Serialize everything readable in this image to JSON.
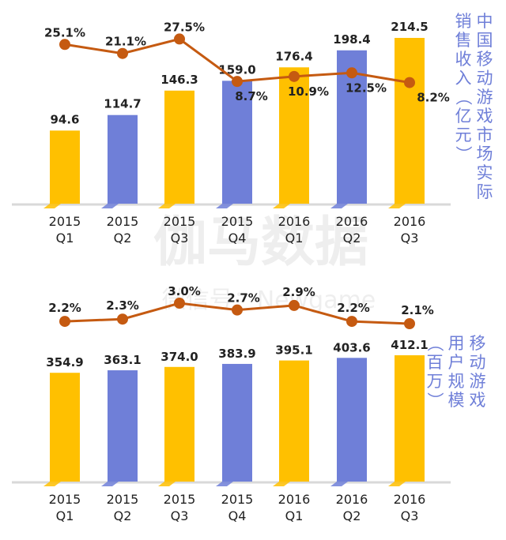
{
  "chart_data": [
    {
      "type": "bar",
      "ylabel": "中国移动游戏市场实际销售收入（亿元）",
      "categories": [
        [
          "2015",
          "Q1"
        ],
        [
          "2015",
          "Q2"
        ],
        [
          "2015",
          "Q3"
        ],
        [
          "2015",
          "Q4"
        ],
        [
          "2016",
          "Q1"
        ],
        [
          "2016",
          "Q2"
        ],
        [
          "2016",
          "Q3"
        ]
      ],
      "values": [
        94.6,
        114.7,
        146.3,
        159.0,
        176.4,
        198.4,
        214.5
      ],
      "value_labels": [
        "94.6",
        "114.7",
        "146.3",
        "159.0",
        "176.4",
        "198.4",
        "214.5"
      ],
      "bar_colors": [
        "#FFC000",
        "#6F7FD8",
        "#FFC000",
        "#6F7FD8",
        "#FFC000",
        "#6F7FD8",
        "#FFC000"
      ],
      "ylim": [
        0,
        220
      ],
      "growth_series": {
        "type": "line",
        "values": [
          25.1,
          21.1,
          27.5,
          8.7,
          10.9,
          12.5,
          8.2
        ],
        "labels": [
          "25.1%",
          "21.1%",
          "27.5%",
          "8.7%",
          "10.9%",
          "12.5%",
          "8.2%"
        ],
        "ylim": [
          0,
          28
        ],
        "color": "#C55A11"
      }
    },
    {
      "type": "bar",
      "ylabel": "移动游戏用户规模（百万）",
      "categories": [
        [
          "2015",
          "Q1"
        ],
        [
          "2015",
          "Q2"
        ],
        [
          "2015",
          "Q3"
        ],
        [
          "2015",
          "Q4"
        ],
        [
          "2016",
          "Q1"
        ],
        [
          "2016",
          "Q2"
        ],
        [
          "2016",
          "Q3"
        ]
      ],
      "values": [
        354.9,
        363.1,
        374.0,
        383.9,
        395.1,
        403.6,
        412.1
      ],
      "value_labels": [
        "354.9",
        "363.1",
        "374.0",
        "383.9",
        "395.1",
        "403.6",
        "412.1"
      ],
      "bar_colors": [
        "#FFC000",
        "#6F7FD8",
        "#FFC000",
        "#6F7FD8",
        "#FFC000",
        "#6F7FD8",
        "#FFC000"
      ],
      "ylim": [
        0,
        420
      ],
      "growth_series": {
        "type": "line",
        "values": [
          2.2,
          2.3,
          3.0,
          2.7,
          2.9,
          2.2,
          2.1
        ],
        "labels": [
          "2.2%",
          "2.3%",
          "3.0%",
          "2.7%",
          "2.9%",
          "2.2%",
          "2.1%"
        ],
        "ylim": [
          2.1,
          3.0
        ],
        "color": "#C55A11"
      }
    }
  ],
  "watermark": {
    "text": "伽马数据",
    "subtext": "微信号：Newgame"
  },
  "colors": {
    "axis": "#D9D9D9",
    "text": "#222222",
    "ylabel": "#6F7FD8"
  }
}
